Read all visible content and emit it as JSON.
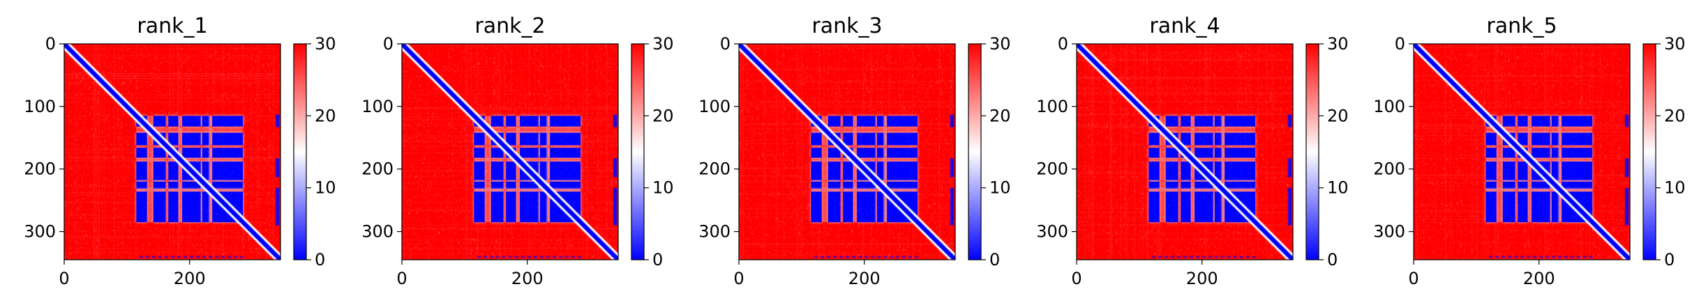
{
  "figure": {
    "colormap": {
      "name": "bwr",
      "low": "#0000ff",
      "mid": "#ffffff",
      "high": "#ff0000"
    }
  },
  "chart_data": [
    {
      "type": "heatmap",
      "title": "rank_1",
      "x_range": [
        0,
        345
      ],
      "y_range": [
        0,
        345
      ],
      "x_ticks": [
        0,
        200
      ],
      "y_ticks": [
        0,
        100,
        200,
        300
      ],
      "colorbar": {
        "range": [
          0,
          30
        ],
        "ticks": [
          0,
          10,
          20,
          30
        ]
      },
      "value_legend": "diagonal ~0; residues 115-285 blocks ~0; off-diagonal elsewhere ~30"
    },
    {
      "type": "heatmap",
      "title": "rank_2",
      "x_range": [
        0,
        345
      ],
      "y_range": [
        0,
        345
      ],
      "x_ticks": [
        0,
        200
      ],
      "y_ticks": [
        0,
        100,
        200,
        300
      ],
      "colorbar": {
        "range": [
          0,
          30
        ],
        "ticks": [
          0,
          10,
          20,
          30
        ]
      },
      "value_legend": "diagonal ~0; residues 115-285 blocks ~0; off-diagonal elsewhere ~30"
    },
    {
      "type": "heatmap",
      "title": "rank_3",
      "x_range": [
        0,
        345
      ],
      "y_range": [
        0,
        345
      ],
      "x_ticks": [
        0,
        200
      ],
      "y_ticks": [
        0,
        100,
        200,
        300
      ],
      "colorbar": {
        "range": [
          0,
          30
        ],
        "ticks": [
          0,
          10,
          20,
          30
        ]
      },
      "value_legend": "diagonal ~0; residues 115-285 blocks ~0; off-diagonal elsewhere ~30"
    },
    {
      "type": "heatmap",
      "title": "rank_4",
      "x_range": [
        0,
        345
      ],
      "y_range": [
        0,
        345
      ],
      "x_ticks": [
        0,
        200
      ],
      "y_ticks": [
        0,
        100,
        200,
        300
      ],
      "colorbar": {
        "range": [
          0,
          30
        ],
        "ticks": [
          0,
          10,
          20,
          30
        ]
      },
      "value_legend": "diagonal ~0; residues 115-285 blocks ~0; off-diagonal elsewhere ~30"
    },
    {
      "type": "heatmap",
      "title": "rank_5",
      "x_range": [
        0,
        345
      ],
      "y_range": [
        0,
        345
      ],
      "x_ticks": [
        0,
        200
      ],
      "y_ticks": [
        0,
        100,
        200,
        300
      ],
      "colorbar": {
        "range": [
          0,
          30
        ],
        "ticks": [
          0,
          10,
          20,
          30
        ]
      },
      "value_legend": "diagonal ~0; residues 115-285 blocks ~0; off-diagonal elsewhere ~30"
    }
  ]
}
